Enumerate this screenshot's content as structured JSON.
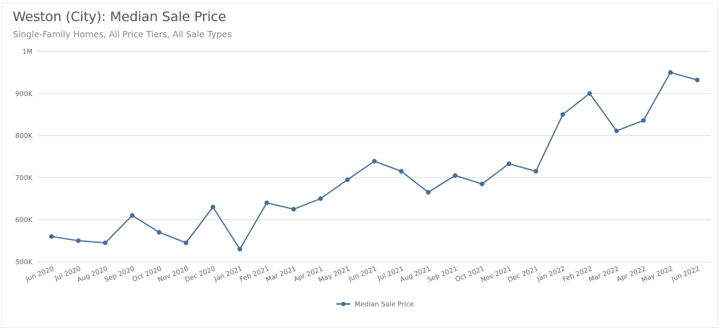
{
  "header": {
    "title": "Weston (City): Median Sale Price",
    "subtitle": "Single-Family Homes, All Price Tiers, All Sale Types"
  },
  "colors": {
    "line": "#4a6f95",
    "grid": "#dddddd",
    "text": "#666666"
  },
  "legend": {
    "label": "Median Sale Price"
  },
  "chart_data": {
    "type": "line",
    "title": "Weston (City): Median Sale Price",
    "subtitle": "Single-Family Homes, All Price Tiers, All Sale Types",
    "xlabel": "",
    "ylabel": "",
    "ylim": [
      500000,
      1000000
    ],
    "yticks": [
      500000,
      600000,
      700000,
      800000,
      900000,
      1000000
    ],
    "ytick_labels": [
      "500K",
      "600K",
      "700K",
      "800K",
      "900K",
      "1M"
    ],
    "grid": true,
    "legend_position": "bottom",
    "categories": [
      "Jun 2020",
      "Jul 2020",
      "Aug 2020",
      "Sep 2020",
      "Oct 2020",
      "Nov 2020",
      "Dec 2020",
      "Jan 2021",
      "Feb 2021",
      "Mar 2021",
      "Apr 2021",
      "May 2021",
      "Jun 2021",
      "Jul 2021",
      "Aug 2021",
      "Sep 2021",
      "Oct 2021",
      "Nov 2021",
      "Dec 2021",
      "Jan 2022",
      "Feb 2022",
      "Mar 2022",
      "Apr 2022",
      "May 2022",
      "Jun 2022"
    ],
    "series": [
      {
        "name": "Median Sale Price",
        "values": [
          560000,
          550000,
          545000,
          610000,
          570000,
          545000,
          630000,
          530000,
          640000,
          625000,
          650000,
          695000,
          739000,
          715000,
          665000,
          705000,
          685000,
          733000,
          715000,
          850000,
          900000,
          811000,
          836000,
          950000,
          932000
        ]
      }
    ]
  }
}
